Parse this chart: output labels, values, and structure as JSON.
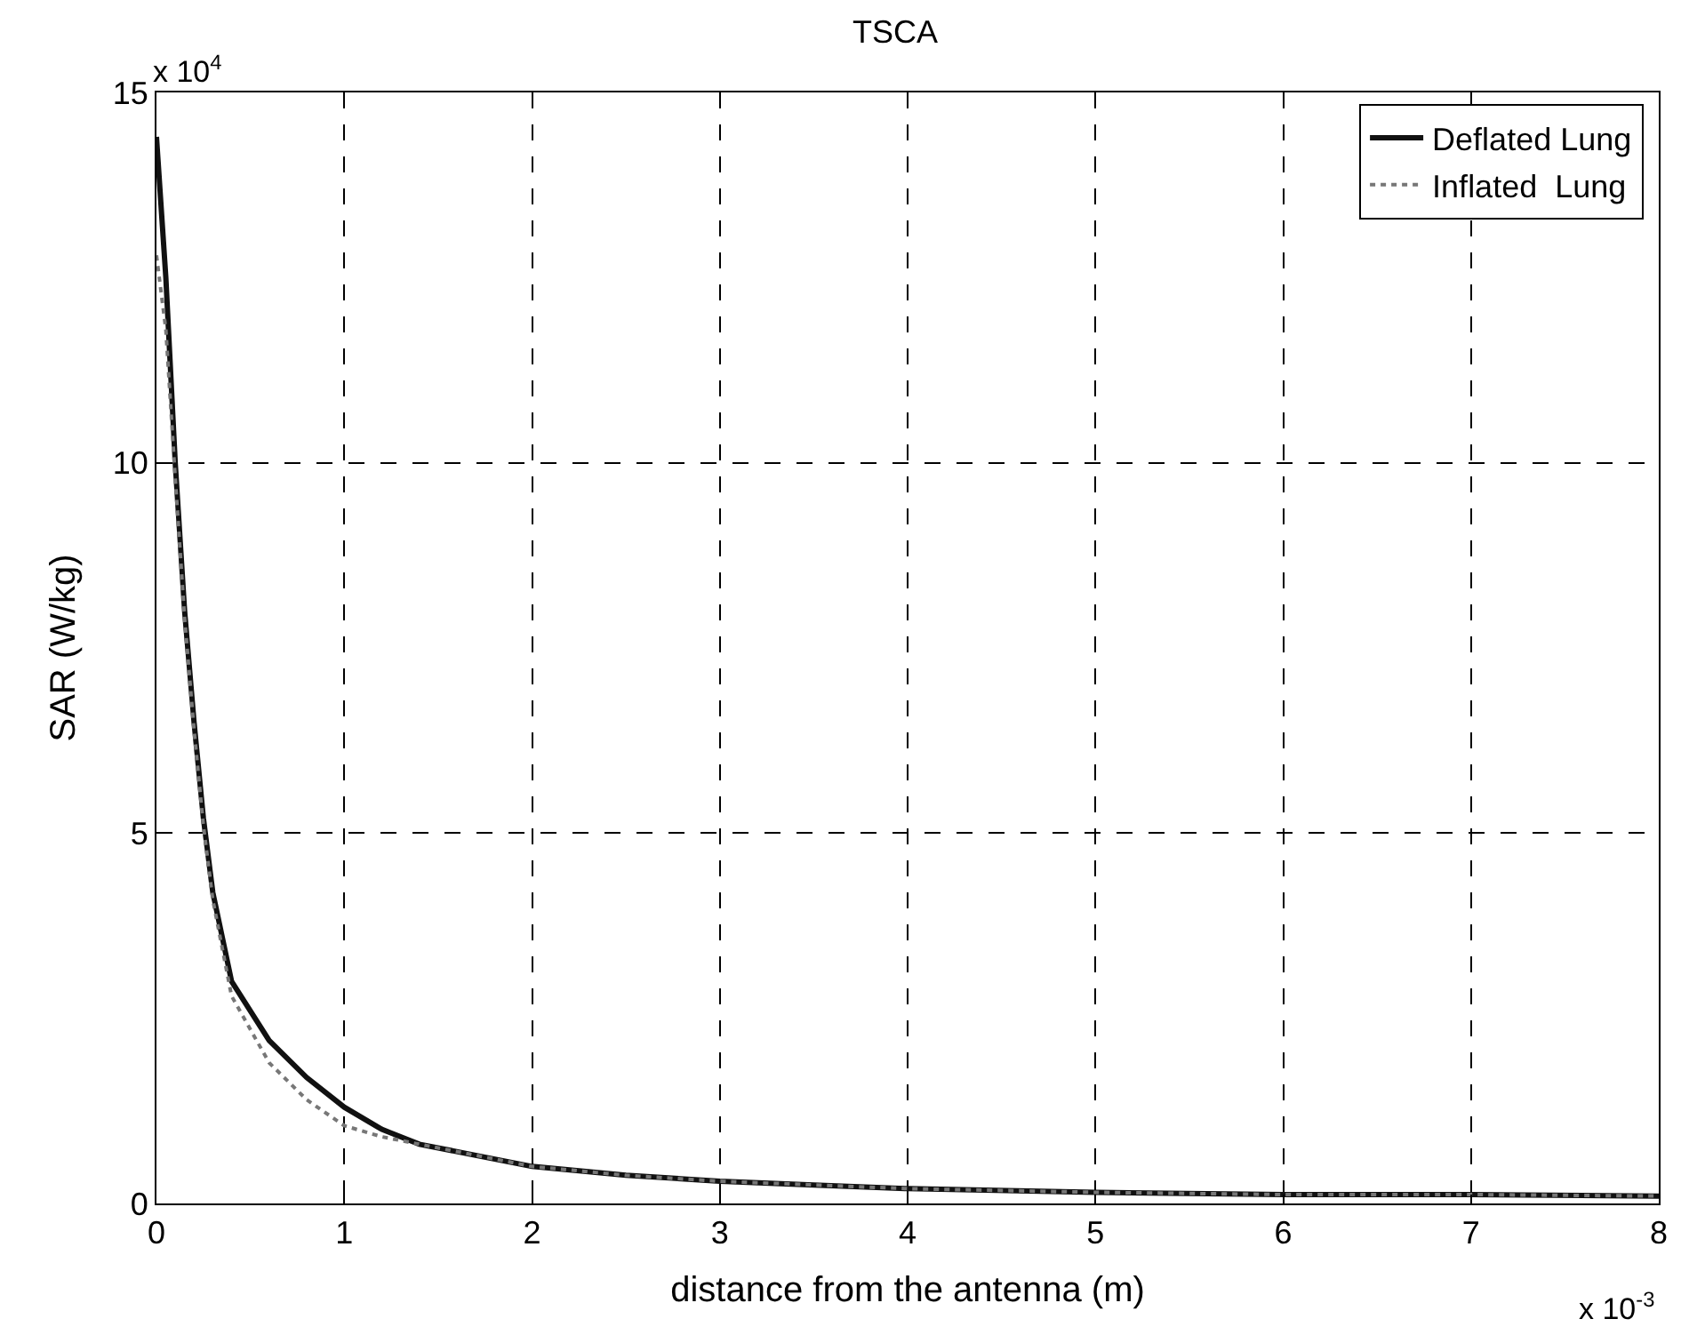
{
  "chart_data": {
    "type": "line",
    "title": "TSCA",
    "xlabel": "distance from the antenna (m)",
    "ylabel": "SAR (W/kg)",
    "annotations": [
      "x 10$^{4}$",
      "x 10$^{-3}$"
    ],
    "xlim": [
      0,
      8
    ],
    "ylim": [
      0,
      15
    ],
    "xticks": [
      0,
      1,
      2,
      3,
      4,
      5,
      6,
      7,
      8
    ],
    "yticks": [
      0,
      5,
      10,
      15
    ],
    "grid": true,
    "legend": "top right",
    "marker": "none",
    "series": [
      {
        "name": "Deflated Lung",
        "color": "#111111",
        "line_style": "solid",
        "x": [
          0,
          0.05,
          0.1,
          0.15,
          0.2,
          0.25,
          0.3,
          0.4,
          0.6,
          0.8,
          1.0,
          1.2,
          1.4,
          1.7,
          2.0,
          2.5,
          3,
          3.5,
          4,
          5,
          6,
          7,
          8
        ],
        "values": [
          14.4,
          12.5,
          10,
          8,
          6.5,
          5.2,
          4.2,
          3.0,
          2.2,
          1.7,
          1.3,
          1.0,
          0.8,
          0.65,
          0.5,
          0.38,
          0.3,
          0.25,
          0.2,
          0.15,
          0.12,
          0.12,
          0.1
        ]
      },
      {
        "name": "Inflated  Lung",
        "color": "#777777",
        "line_style": "dotted",
        "x": [
          0,
          0.05,
          0.1,
          0.15,
          0.2,
          0.25,
          0.3,
          0.4,
          0.6,
          0.8,
          1.0,
          1.2,
          1.4,
          1.7,
          2.0,
          2.5,
          3,
          3.5,
          4,
          5,
          6,
          7,
          8
        ],
        "values": [
          12.8,
          11.8,
          9.8,
          7.9,
          6.4,
          5.1,
          4.1,
          2.8,
          1.9,
          1.4,
          1.05,
          0.9,
          0.8,
          0.65,
          0.5,
          0.38,
          0.3,
          0.25,
          0.2,
          0.15,
          0.12,
          0.12,
          0.1
        ]
      }
    ]
  }
}
